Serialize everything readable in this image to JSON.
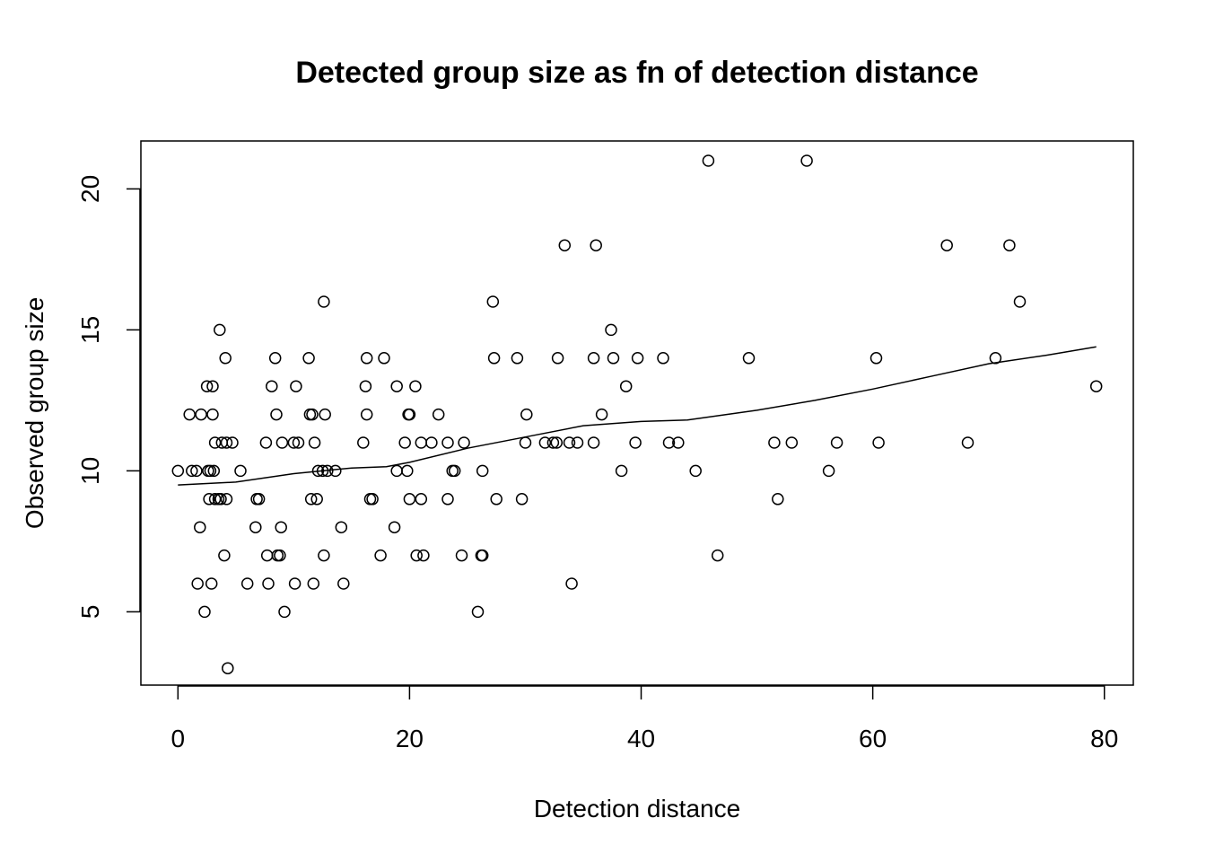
{
  "chart_data": {
    "type": "scatter",
    "title": "Detected group size as fn of detection distance",
    "xlabel": "Detection distance",
    "ylabel": "Observed group size",
    "xlim": [
      -3.2,
      82.5
    ],
    "ylim": [
      2.4,
      21.7
    ],
    "xticks": [
      0,
      20,
      40,
      60,
      80
    ],
    "yticks": [
      5,
      10,
      15,
      20
    ],
    "points": [
      [
        0.0,
        10
      ],
      [
        1.0,
        12
      ],
      [
        1.2,
        10
      ],
      [
        1.6,
        10
      ],
      [
        1.7,
        6
      ],
      [
        1.9,
        8
      ],
      [
        2.0,
        12
      ],
      [
        2.3,
        5
      ],
      [
        2.5,
        13
      ],
      [
        2.6,
        10
      ],
      [
        2.7,
        9
      ],
      [
        2.8,
        10
      ],
      [
        2.9,
        6
      ],
      [
        3.0,
        12
      ],
      [
        3.0,
        13
      ],
      [
        3.1,
        10
      ],
      [
        3.2,
        11
      ],
      [
        3.2,
        9
      ],
      [
        3.5,
        9
      ],
      [
        3.6,
        15
      ],
      [
        3.7,
        9
      ],
      [
        3.8,
        11
      ],
      [
        4.0,
        7
      ],
      [
        4.1,
        14
      ],
      [
        4.2,
        9
      ],
      [
        4.2,
        11
      ],
      [
        4.3,
        3
      ],
      [
        4.7,
        11
      ],
      [
        5.4,
        10
      ],
      [
        6.0,
        6
      ],
      [
        6.7,
        8
      ],
      [
        6.8,
        9
      ],
      [
        7.0,
        9
      ],
      [
        7.6,
        11
      ],
      [
        7.7,
        7
      ],
      [
        7.8,
        6
      ],
      [
        8.1,
        13
      ],
      [
        8.4,
        14
      ],
      [
        8.5,
        12
      ],
      [
        8.6,
        7
      ],
      [
        8.8,
        7
      ],
      [
        8.9,
        8
      ],
      [
        9.0,
        11
      ],
      [
        9.2,
        5
      ],
      [
        10.0,
        11
      ],
      [
        10.1,
        6
      ],
      [
        10.2,
        13
      ],
      [
        10.4,
        11
      ],
      [
        11.3,
        14
      ],
      [
        11.4,
        12
      ],
      [
        11.5,
        9
      ],
      [
        11.6,
        12
      ],
      [
        11.7,
        6
      ],
      [
        11.8,
        11
      ],
      [
        12.0,
        9
      ],
      [
        12.1,
        10
      ],
      [
        12.5,
        10
      ],
      [
        12.6,
        7
      ],
      [
        12.6,
        16
      ],
      [
        12.7,
        12
      ],
      [
        12.9,
        10
      ],
      [
        13.6,
        10
      ],
      [
        14.1,
        8
      ],
      [
        14.3,
        6
      ],
      [
        16.0,
        11
      ],
      [
        16.2,
        13
      ],
      [
        16.3,
        12
      ],
      [
        16.3,
        14
      ],
      [
        16.6,
        9
      ],
      [
        16.8,
        9
      ],
      [
        17.5,
        7
      ],
      [
        17.8,
        14
      ],
      [
        18.7,
        8
      ],
      [
        18.9,
        10
      ],
      [
        18.9,
        13
      ],
      [
        19.6,
        11
      ],
      [
        19.8,
        10
      ],
      [
        19.9,
        12
      ],
      [
        20.0,
        9
      ],
      [
        20.0,
        12
      ],
      [
        20.5,
        13
      ],
      [
        20.6,
        7
      ],
      [
        21.0,
        11
      ],
      [
        21.0,
        9
      ],
      [
        21.2,
        7
      ],
      [
        21.9,
        11
      ],
      [
        22.5,
        12
      ],
      [
        23.3,
        9
      ],
      [
        23.3,
        11
      ],
      [
        23.7,
        10
      ],
      [
        23.9,
        10
      ],
      [
        24.5,
        7
      ],
      [
        24.7,
        11
      ],
      [
        25.9,
        5
      ],
      [
        26.2,
        7
      ],
      [
        26.3,
        10
      ],
      [
        26.3,
        7
      ],
      [
        27.2,
        16
      ],
      [
        27.3,
        14
      ],
      [
        27.5,
        9
      ],
      [
        29.3,
        14
      ],
      [
        29.7,
        9
      ],
      [
        30.0,
        11
      ],
      [
        30.1,
        12
      ],
      [
        31.7,
        11
      ],
      [
        32.4,
        11
      ],
      [
        32.7,
        11
      ],
      [
        32.8,
        14
      ],
      [
        33.4,
        18
      ],
      [
        33.8,
        11
      ],
      [
        34.0,
        6
      ],
      [
        34.5,
        11
      ],
      [
        35.9,
        14
      ],
      [
        35.9,
        11
      ],
      [
        36.1,
        18
      ],
      [
        36.6,
        12
      ],
      [
        37.4,
        15
      ],
      [
        37.6,
        14
      ],
      [
        38.3,
        10
      ],
      [
        38.7,
        13
      ],
      [
        39.5,
        11
      ],
      [
        39.7,
        14
      ],
      [
        41.9,
        14
      ],
      [
        42.4,
        11
      ],
      [
        43.2,
        11
      ],
      [
        44.7,
        10
      ],
      [
        45.8,
        21
      ],
      [
        46.6,
        7
      ],
      [
        49.3,
        14
      ],
      [
        51.5,
        11
      ],
      [
        51.8,
        9
      ],
      [
        53.0,
        11
      ],
      [
        54.3,
        21
      ],
      [
        56.2,
        10
      ],
      [
        56.9,
        11
      ],
      [
        60.3,
        14
      ],
      [
        60.5,
        11
      ],
      [
        66.4,
        18
      ],
      [
        68.2,
        11
      ],
      [
        70.6,
        14
      ],
      [
        71.8,
        18
      ],
      [
        72.7,
        16
      ],
      [
        79.3,
        13
      ]
    ],
    "smooth_line": [
      [
        0,
        9.5
      ],
      [
        5,
        9.6
      ],
      [
        10,
        9.9
      ],
      [
        15,
        10.1
      ],
      [
        18,
        10.15
      ],
      [
        20,
        10.3
      ],
      [
        25,
        10.8
      ],
      [
        30,
        11.2
      ],
      [
        35,
        11.6
      ],
      [
        40,
        11.75
      ],
      [
        44,
        11.8
      ],
      [
        50,
        12.15
      ],
      [
        55,
        12.5
      ],
      [
        60,
        12.9
      ],
      [
        65,
        13.35
      ],
      [
        70,
        13.8
      ],
      [
        75,
        14.1
      ],
      [
        79.3,
        14.4
      ]
    ],
    "grid": false,
    "legend": "none"
  }
}
